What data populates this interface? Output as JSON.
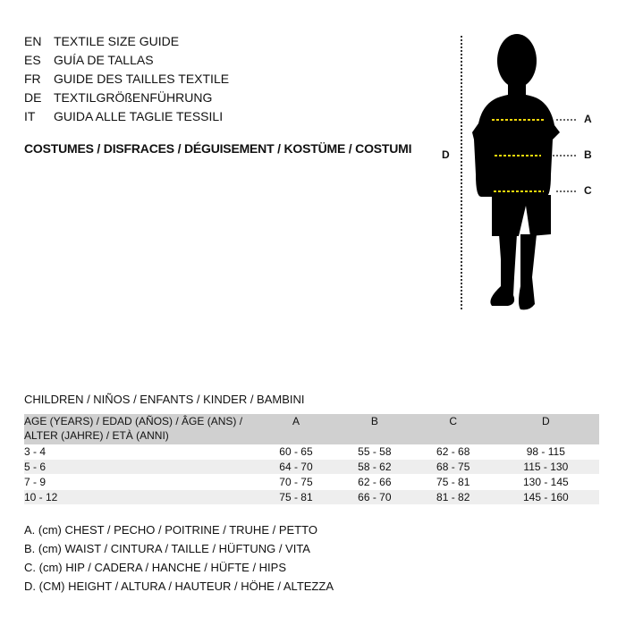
{
  "guide_titles": [
    {
      "code": "EN",
      "text": "TEXTILE SIZE GUIDE"
    },
    {
      "code": "ES",
      "text": "GUÍA DE TALLAS"
    },
    {
      "code": "FR",
      "text": "GUIDE DES TAILLES TEXTILE"
    },
    {
      "code": "DE",
      "text": "TEXTILGRÖßENFÜHRUNG"
    },
    {
      "code": "IT",
      "text": "GUIDA ALLE TAGLIE TESSILI"
    }
  ],
  "category": "COSTUMES / DISFRACES / DÉGUISEMENT / KOSTÜME / COSTUMI",
  "figure": {
    "labels": {
      "a": "A",
      "b": "B",
      "c": "C",
      "d": "D"
    },
    "measure_line_color": "#f5d90a"
  },
  "table": {
    "title": "CHILDREN / NIÑOS / ENFANTS / KINDER / BAMBINI",
    "age_header_1": "AGE (YEARS) / EDAD (AÑOS) / ÂGE (ANS) /",
    "age_header_2": "ALTER (JAHRE) / ETÀ (ANNI)",
    "headers": [
      "A",
      "B",
      "C",
      "D"
    ],
    "rows": [
      [
        "3 - 4",
        "60 - 65",
        "55 - 58",
        "62 - 68",
        "98 - 115"
      ],
      [
        "5 - 6",
        "64 - 70",
        "58 - 62",
        "68 - 75",
        "115 - 130"
      ],
      [
        "7 - 9",
        "70 - 75",
        "62 - 66",
        "75 - 81",
        "130 - 145"
      ],
      [
        "10 - 12",
        "75 - 81",
        "66 - 70",
        "81 - 82",
        "145 - 160"
      ]
    ]
  },
  "legend": [
    "A. (cm) CHEST / PECHO / POITRINE / TRUHE / PETTO",
    "B. (cm) WAIST / CINTURA / TAILLE / HÜFTUNG / VITA",
    "C. (cm) HIP / CADERA / HANCHE / HÜFTE / HIPS",
    "D. (CM) HEIGHT / ALTURA / HAUTEUR / HÖHE / ALTEZZA"
  ]
}
